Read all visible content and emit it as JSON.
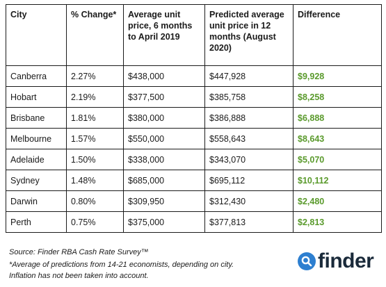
{
  "table": {
    "headers": [
      "City",
      "% Change*",
      "Average unit price, 6 months to April 2019",
      "Predicted average unit price in 12 months (August 2020)",
      "Difference"
    ],
    "rows": [
      {
        "city": "Canberra",
        "change": "2.27%",
        "avg": "$438,000",
        "predicted": "$447,928",
        "difference": "$9,928"
      },
      {
        "city": "Hobart",
        "change": "2.19%",
        "avg": "$377,500",
        "predicted": "$385,758",
        "difference": "$8,258"
      },
      {
        "city": "Brisbane",
        "change": "1.81%",
        "avg": "$380,000",
        "predicted": "$386,888",
        "difference": "$6,888"
      },
      {
        "city": "Melbourne",
        "change": "1.57%",
        "avg": "$550,000",
        "predicted": "$558,643",
        "difference": "$8,643"
      },
      {
        "city": "Adelaide",
        "change": "1.50%",
        "avg": "$338,000",
        "predicted": "$343,070",
        "difference": "$5,070"
      },
      {
        "city": "Sydney",
        "change": "1.48%",
        "avg": "$685,000",
        "predicted": "$695,112",
        "difference": "$10,112"
      },
      {
        "city": "Darwin",
        "change": "0.80%",
        "avg": "$309,950",
        "predicted": "$312,430",
        "difference": "$2,480"
      },
      {
        "city": "Perth",
        "change": "0.75%",
        "avg": "$375,000",
        "predicted": "$377,813",
        "difference": "$2,813"
      }
    ]
  },
  "footnotes": {
    "source": "Source: Finder RBA Cash Rate Survey™",
    "note1": "*Average of predictions from 14-21 economists, depending on city.",
    "note2": "Inflation has not been taken into account."
  },
  "logo": {
    "text": "finder",
    "icon": "search-magnifier-icon"
  },
  "colors": {
    "difference": "#5a9a2c",
    "logo_circle": "#2d7fd0",
    "logo_text": "#1a2a3a"
  }
}
